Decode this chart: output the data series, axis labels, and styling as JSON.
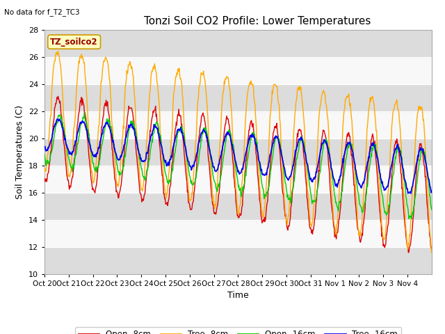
{
  "title": "Tonzi Soil CO2 Profile: Lower Temperatures",
  "ylabel": "Soil Temperatures (C)",
  "xlabel": "Time",
  "no_data_text": "No data for f_T2_TC3",
  "legend_label_text": "TZ_soilco2",
  "ylim": [
    10,
    28
  ],
  "yticks": [
    10,
    12,
    14,
    16,
    18,
    20,
    22,
    24,
    26,
    28
  ],
  "colors": {
    "open8": "#dd0000",
    "tree8": "#ffaa00",
    "open16": "#00cc00",
    "tree16": "#0000ee"
  },
  "legend_entries": [
    "Open -8cm",
    "Tree -8cm",
    "Open -16cm",
    "Tree -16cm"
  ],
  "bg_color": "#ffffff",
  "plot_bg": "#f0f0f0",
  "band_light": "#f8f8f8",
  "band_dark": "#dcdcdc",
  "title_fontsize": 11,
  "axis_fontsize": 9,
  "tick_fontsize": 8,
  "n_days": 16
}
